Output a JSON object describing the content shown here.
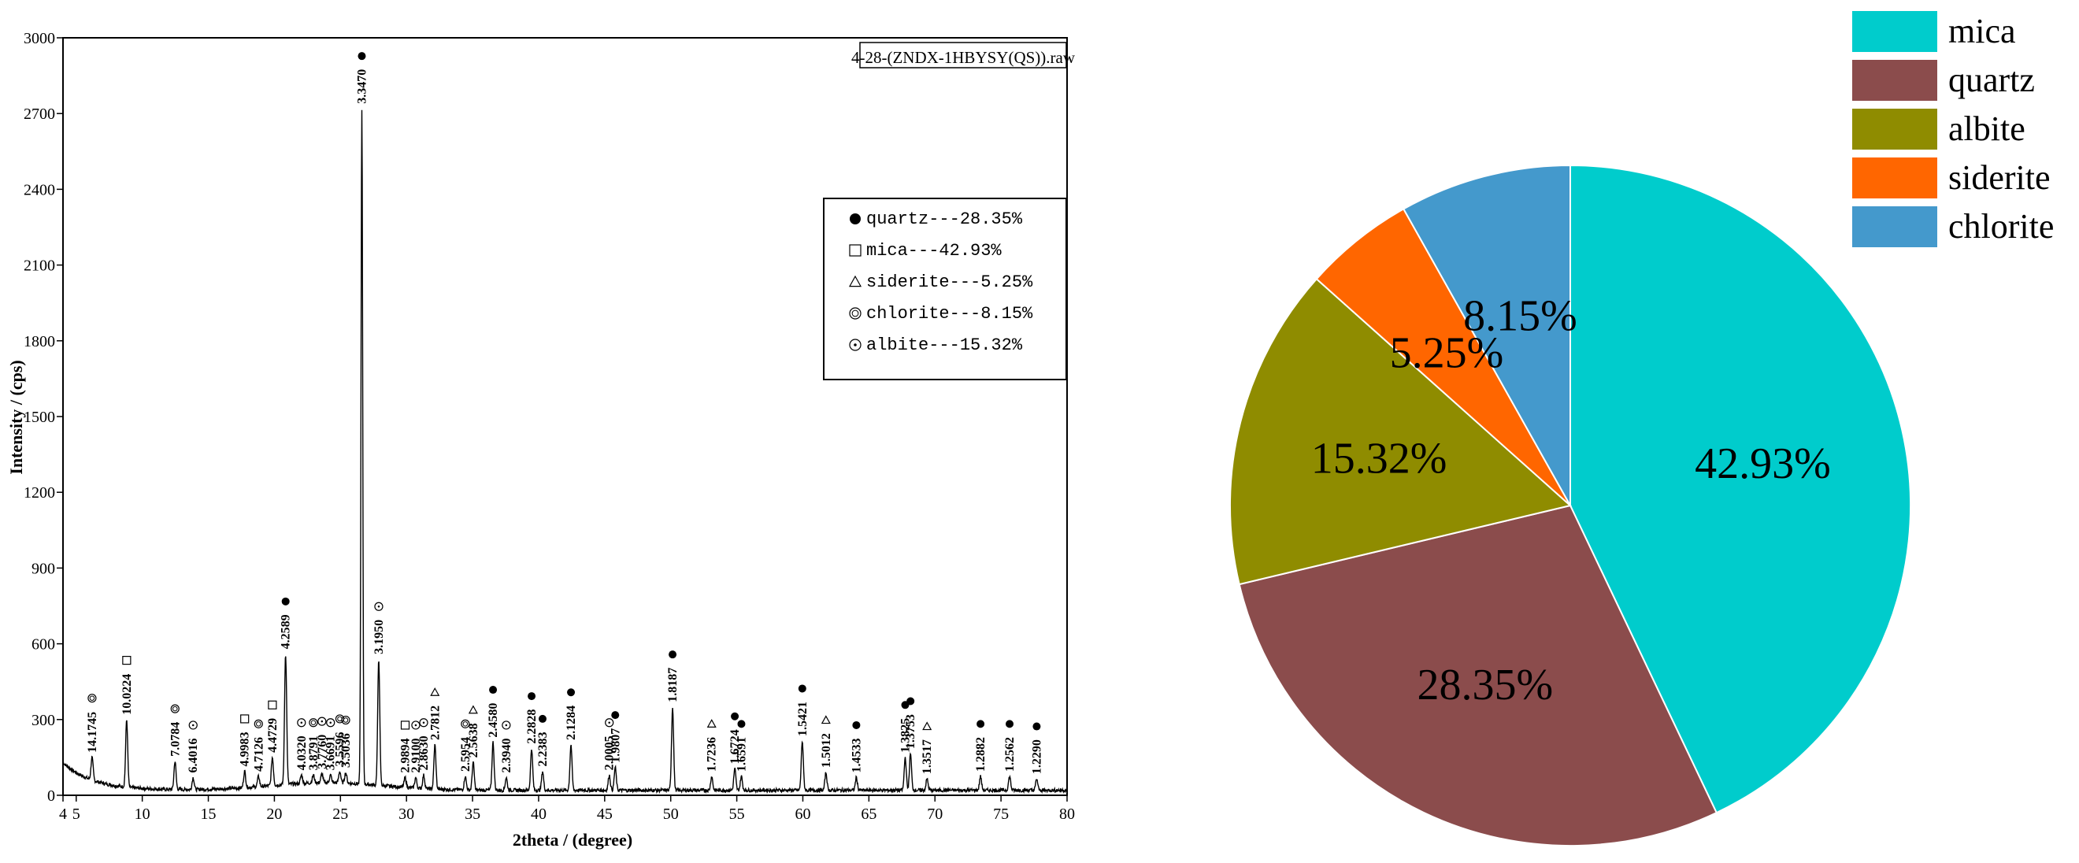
{
  "chart_data": [
    {
      "type": "line",
      "file_label": "4-28-(ZNDX-1HBYSY(QS)).raw",
      "xlabel": "2theta / (degree)",
      "ylabel": "Intensity / (cps)",
      "xlim": [
        4,
        80
      ],
      "ylim": [
        0,
        3000
      ],
      "x_ticks": [
        4,
        5,
        10,
        15,
        20,
        25,
        30,
        35,
        40,
        45,
        50,
        55,
        60,
        65,
        70,
        75,
        80
      ],
      "x_tick_labels": [
        "4",
        "5",
        "10",
        "15",
        "20",
        "25",
        "30",
        "35",
        "40",
        "45",
        "50",
        "55",
        "60",
        "65",
        "70",
        "75",
        "80"
      ],
      "y_ticks": [
        0,
        300,
        600,
        900,
        1200,
        1500,
        1800,
        2100,
        2400,
        2700,
        3000
      ],
      "y_tick_labels": [
        "0",
        "300",
        "600",
        "900",
        "1200",
        "1500",
        "1800",
        "2100",
        "2400",
        "2700",
        "3000"
      ],
      "legend": [
        {
          "symbol": "filled-circle",
          "text": "quartz---28.35%"
        },
        {
          "symbol": "open-square",
          "text": "mica---42.93%"
        },
        {
          "symbol": "open-triangle",
          "text": "siderite---5.25%"
        },
        {
          "symbol": "double-circle",
          "text": "chlorite---8.15%"
        },
        {
          "symbol": "dot-circle",
          "text": "albite---15.32%"
        }
      ],
      "peaks": [
        {
          "x": 6.2,
          "y": 150,
          "label": "14.1745",
          "symbol": "double-circle"
        },
        {
          "x": 8.82,
          "y": 300,
          "label": "10.0224",
          "symbol": "open-square"
        },
        {
          "x": 12.48,
          "y": 135,
          "label": "7.0784",
          "symbol": "double-circle"
        },
        {
          "x": 13.85,
          "y": 70,
          "label": "6.4016",
          "symbol": "dot-circle"
        },
        {
          "x": 17.75,
          "y": 95,
          "label": "4.9983",
          "symbol": "open-square"
        },
        {
          "x": 18.8,
          "y": 75,
          "label": "4.7126",
          "symbol": "double-circle"
        },
        {
          "x": 19.85,
          "y": 150,
          "label": "4.4729",
          "symbol": "open-square"
        },
        {
          "x": 20.85,
          "y": 560,
          "label": "4.2589",
          "symbol": "filled-circle"
        },
        {
          "x": 22.05,
          "y": 80,
          "label": "4.0320",
          "symbol": "dot-circle"
        },
        {
          "x": 22.95,
          "y": 80,
          "label": "3.8791",
          "symbol": "double-circle"
        },
        {
          "x": 23.6,
          "y": 85,
          "label": "3.7760",
          "symbol": "dot-circle"
        },
        {
          "x": 24.25,
          "y": 80,
          "label": "3.6691",
          "symbol": "dot-circle"
        },
        {
          "x": 24.95,
          "y": 95,
          "label": "3.5596",
          "symbol": "double-circle"
        },
        {
          "x": 25.4,
          "y": 90,
          "label": "3.5036",
          "symbol": "double-circle"
        },
        {
          "x": 26.62,
          "y": 2720,
          "label": "3.3470",
          "symbol": "filled-circle"
        },
        {
          "x": 27.9,
          "y": 540,
          "label": "3.1950",
          "symbol": "dot-circle"
        },
        {
          "x": 29.9,
          "y": 70,
          "label": "2.9894",
          "symbol": "open-square"
        },
        {
          "x": 30.7,
          "y": 70,
          "label": "2.9100",
          "symbol": "dot-circle"
        },
        {
          "x": 31.3,
          "y": 80,
          "label": "2.8630",
          "symbol": "dot-circle"
        },
        {
          "x": 32.15,
          "y": 200,
          "label": "2.7812",
          "symbol": "open-triangle"
        },
        {
          "x": 34.45,
          "y": 75,
          "label": "2.5954",
          "symbol": "double-circle"
        },
        {
          "x": 35.05,
          "y": 130,
          "label": "2.5638",
          "symbol": "open-triangle"
        },
        {
          "x": 36.55,
          "y": 210,
          "label": "2.4580",
          "symbol": "filled-circle"
        },
        {
          "x": 37.55,
          "y": 70,
          "label": "2.3940",
          "symbol": "dot-circle"
        },
        {
          "x": 39.47,
          "y": 185,
          "label": "2.2828",
          "symbol": "filled-circle"
        },
        {
          "x": 40.3,
          "y": 95,
          "label": "2.2383",
          "symbol": "filled-circle"
        },
        {
          "x": 42.45,
          "y": 200,
          "label": "2.1284",
          "symbol": "filled-circle"
        },
        {
          "x": 45.35,
          "y": 80,
          "label": "2.0005",
          "symbol": "dot-circle"
        },
        {
          "x": 45.8,
          "y": 110,
          "label": "1.9807",
          "symbol": "filled-circle"
        },
        {
          "x": 50.14,
          "y": 350,
          "label": "1.8187",
          "symbol": "filled-circle"
        },
        {
          "x": 53.1,
          "y": 75,
          "label": "1.7236",
          "symbol": "open-triangle"
        },
        {
          "x": 54.85,
          "y": 105,
          "label": "1.6724",
          "symbol": "filled-circle"
        },
        {
          "x": 55.35,
          "y": 75,
          "label": "1.6591",
          "symbol": "filled-circle"
        },
        {
          "x": 59.96,
          "y": 215,
          "label": "1.5421",
          "symbol": "filled-circle"
        },
        {
          "x": 61.75,
          "y": 90,
          "label": "1.5012",
          "symbol": "open-triangle"
        },
        {
          "x": 64.05,
          "y": 70,
          "label": "1.4533",
          "symbol": "filled-circle"
        },
        {
          "x": 67.75,
          "y": 150,
          "label": "1.3825",
          "symbol": "filled-circle"
        },
        {
          "x": 68.15,
          "y": 165,
          "label": "1.3753",
          "symbol": "filled-circle"
        },
        {
          "x": 69.4,
          "y": 65,
          "label": "1.3517",
          "symbol": "open-triangle"
        },
        {
          "x": 73.45,
          "y": 75,
          "label": "1.2882",
          "symbol": "filled-circle"
        },
        {
          "x": 75.65,
          "y": 75,
          "label": "1.2562",
          "symbol": "filled-circle"
        },
        {
          "x": 77.7,
          "y": 65,
          "label": "1.2290",
          "symbol": "filled-circle"
        }
      ]
    },
    {
      "type": "pie",
      "series": [
        {
          "name": "mica",
          "value": 42.93,
          "label": "42.93%",
          "color": "#00CCCC"
        },
        {
          "name": "quartz",
          "value": 28.35,
          "label": "28.35%",
          "color": "#8B4C4C"
        },
        {
          "name": "albite",
          "value": 15.32,
          "label": "15.32%",
          "color": "#8F8C00"
        },
        {
          "name": "siderite",
          "value": 5.25,
          "label": "5.25%",
          "color": "#FF6600"
        },
        {
          "name": "chlorite",
          "value": 8.15,
          "label": "8.15%",
          "color": "#4499CC"
        }
      ],
      "legend_placement": "top-right"
    }
  ]
}
